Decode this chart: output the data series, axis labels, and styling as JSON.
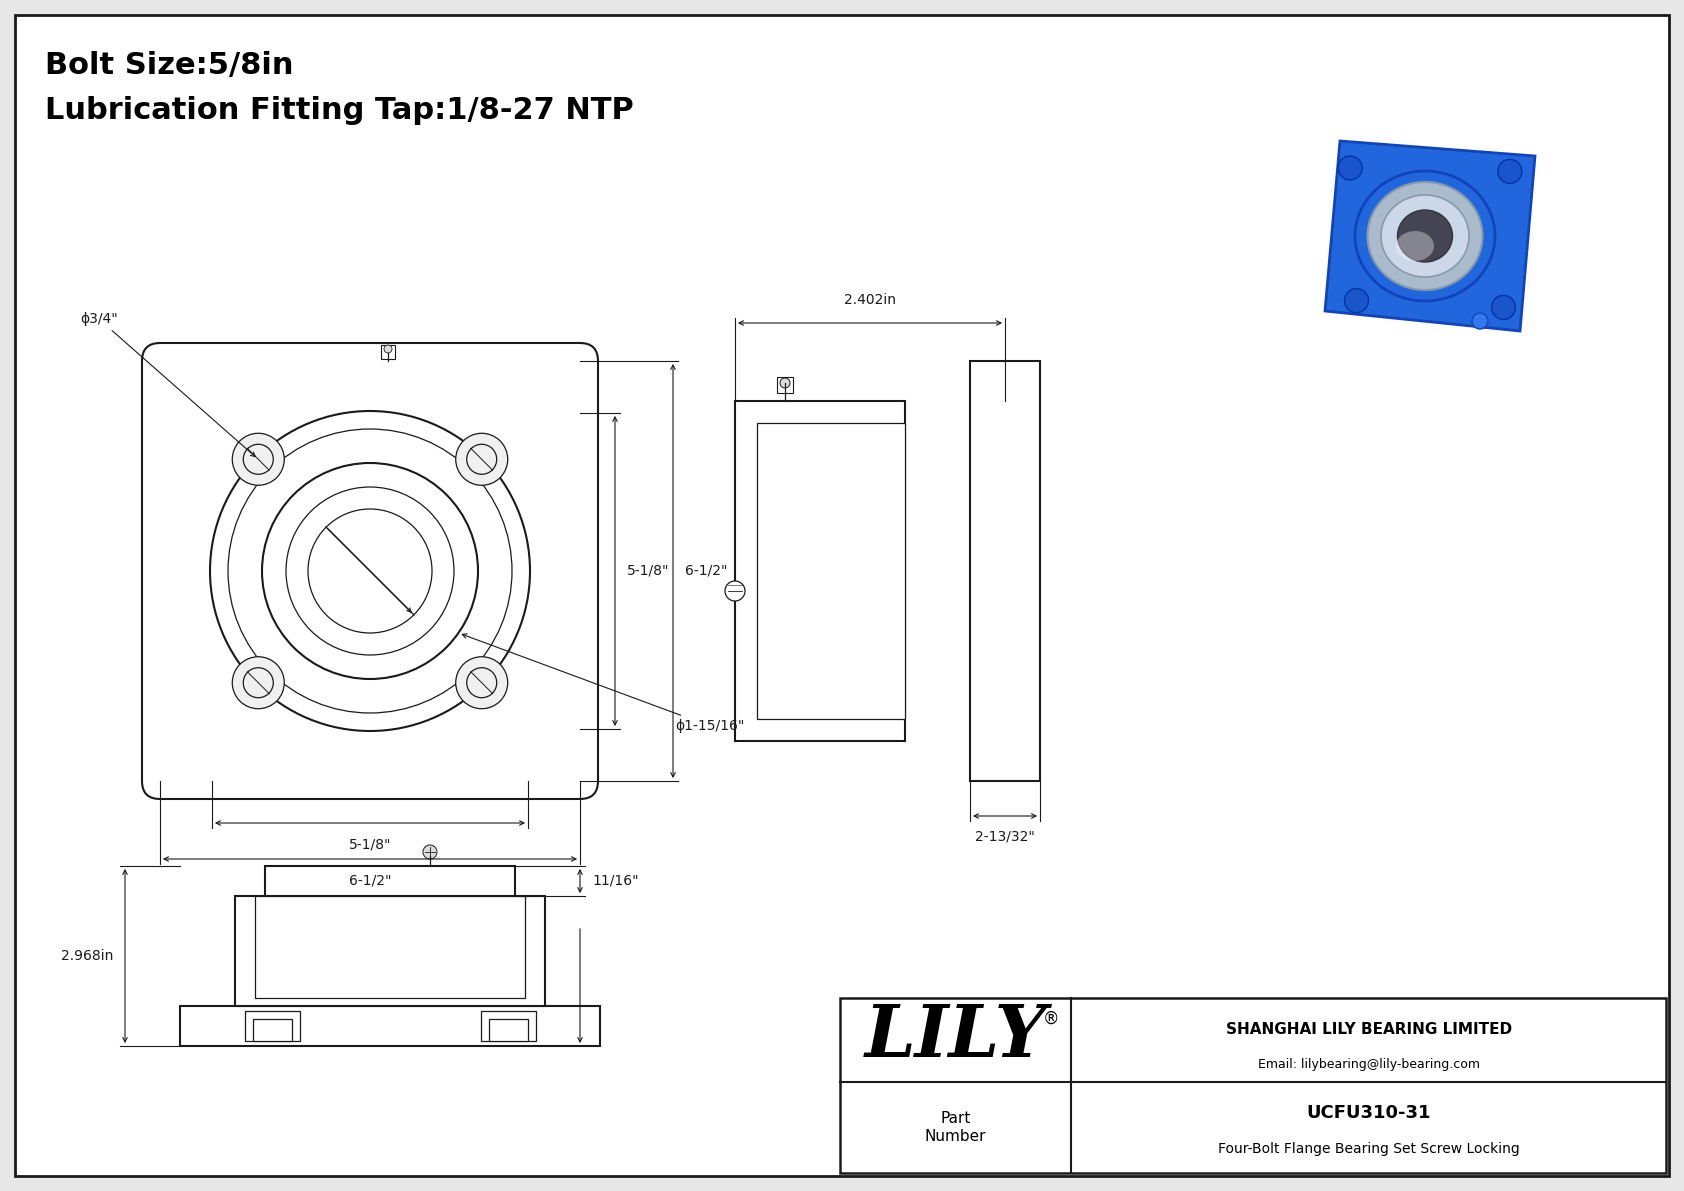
{
  "bg_color": "#e8e8e8",
  "inner_bg": "#ffffff",
  "line_color": "#1a1a1a",
  "dim_color": "#1a1a1a",
  "title_line1": "Bolt Size:5/8in",
  "title_line2": "Lubrication Fitting Tap:1/8-27 NTP",
  "part_number": "UCFU310-31",
  "part_desc": "Four-Bolt Flange Bearing Set Screw Locking",
  "company": "SHANGHAI LILY BEARING LIMITED",
  "email": "Email: lilybearing@lily-bearing.com",
  "lily_text": "LILY",
  "registered": "®",
  "dims": {
    "bolt_hole_dia": "ϕ3/4\"",
    "bearing_dia": "ϕ1-15/16\"",
    "bolt_circle": "5-1/8\"",
    "flange_size": "6-1/2\"",
    "height_51_8": "5-1/8\"",
    "height_61_2": "6-1/2\"",
    "width": "2.402in",
    "depth": "2-13/32\"",
    "total_height": "2.968in",
    "flange_thick": "11/16\""
  }
}
